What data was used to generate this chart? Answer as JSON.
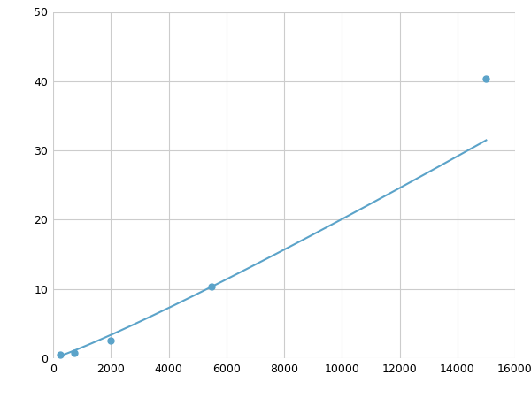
{
  "x_points": [
    250,
    750,
    2000,
    5500,
    15000
  ],
  "y_points": [
    0.5,
    0.8,
    2.5,
    10.3,
    40.3
  ],
  "line_color": "#5ba3c9",
  "marker_color": "#5ba3c9",
  "marker_size": 5,
  "line_width": 1.5,
  "xlim": [
    0,
    16000
  ],
  "ylim": [
    0,
    50
  ],
  "xticks": [
    0,
    2000,
    4000,
    6000,
    8000,
    10000,
    12000,
    14000,
    16000
  ],
  "yticks": [
    0,
    10,
    20,
    30,
    40,
    50
  ],
  "grid_color": "#cccccc",
  "bg_color": "#ffffff",
  "tick_label_fontsize": 9,
  "figure_width": 6.0,
  "figure_height": 4.5,
  "dpi": 100
}
